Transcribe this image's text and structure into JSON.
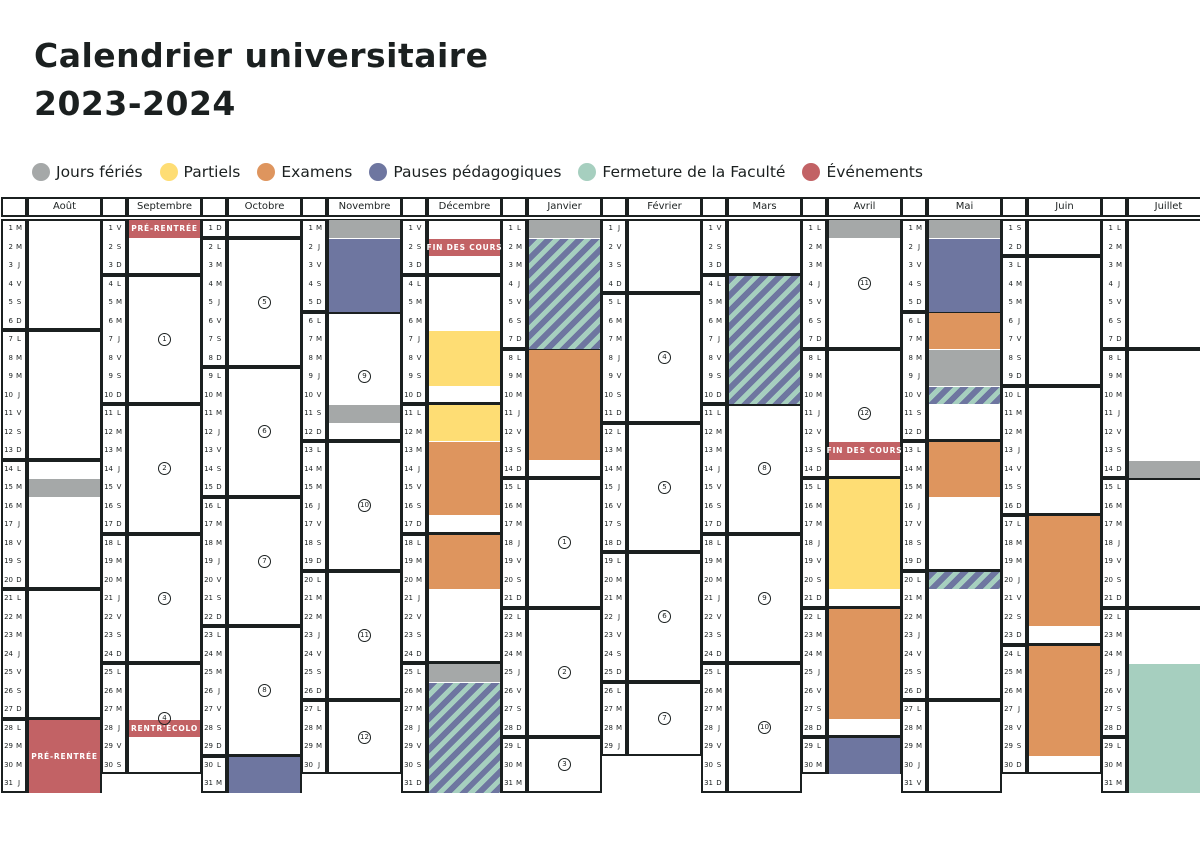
{
  "title": {
    "line1": "Calendrier universitaire",
    "line2": "2023-2024"
  },
  "legend": [
    {
      "key": "ferie",
      "label": "Jours fériés",
      "color": "#a5a8a8"
    },
    {
      "key": "partiels",
      "label": "Partiels",
      "color": "#fedd74"
    },
    {
      "key": "examens",
      "label": "Examens",
      "color": "#de955e"
    },
    {
      "key": "pause",
      "label": "Pauses pédagogiques",
      "color": "#6e76a0"
    },
    {
      "key": "fermeture",
      "label": "Fermeture de la Faculté",
      "color": "#a6cfbf"
    },
    {
      "key": "evenement",
      "label": "Événements",
      "color": "#c26265"
    }
  ],
  "weekday_letters": [
    "D",
    "L",
    "M",
    "M",
    "J",
    "V",
    "S"
  ],
  "months": [
    {
      "name": "Août",
      "year": 2023,
      "month": 8,
      "weeks": [],
      "events": [
        {
          "start": 15,
          "end": 15,
          "type": "ferie"
        },
        {
          "start": 28,
          "end": 31,
          "type": "evenement",
          "label": "PRÉ-RENTRÉE"
        }
      ]
    },
    {
      "name": "Septembre",
      "year": 2023,
      "month": 9,
      "weeks": [
        {
          "start": 4,
          "label": "1"
        },
        {
          "start": 11,
          "label": "2"
        },
        {
          "start": 18,
          "label": "3"
        },
        {
          "start": 25,
          "label": "4"
        }
      ],
      "events": [
        {
          "start": 1,
          "end": 1,
          "type": "evenement",
          "label": "PRÉ-RENTRÉE"
        },
        {
          "start": 28,
          "end": 28,
          "type": "evenement",
          "label": "RENTR'ÉCOLO"
        }
      ]
    },
    {
      "name": "Octobre",
      "year": 2023,
      "month": 10,
      "weeks": [
        {
          "start": 2,
          "label": "5"
        },
        {
          "start": 9,
          "label": "6"
        },
        {
          "start": 16,
          "label": "7"
        },
        {
          "start": 23,
          "label": "8"
        }
      ],
      "events": [
        {
          "start": 30,
          "end": 31,
          "type": "pause"
        }
      ]
    },
    {
      "name": "Novembre",
      "year": 2023,
      "month": 11,
      "weeks": [
        {
          "start": 6,
          "label": "9"
        },
        {
          "start": 13,
          "label": "10"
        },
        {
          "start": 20,
          "label": "11"
        },
        {
          "start": 27,
          "label": "12"
        }
      ],
      "events": [
        {
          "start": 1,
          "end": 1,
          "type": "ferie"
        },
        {
          "start": 2,
          "end": 5,
          "type": "pause"
        },
        {
          "start": 11,
          "end": 11,
          "type": "ferie"
        }
      ]
    },
    {
      "name": "Décembre",
      "year": 2023,
      "month": 12,
      "weeks": [],
      "events": [
        {
          "start": 2,
          "end": 2,
          "type": "evenement",
          "label": "FIN DES COURS"
        },
        {
          "start": 7,
          "end": 9,
          "type": "partiels"
        },
        {
          "start": 11,
          "end": 12,
          "type": "partiels"
        },
        {
          "start": 13,
          "end": 16,
          "type": "examens"
        },
        {
          "start": 18,
          "end": 20,
          "type": "examens"
        },
        {
          "start": 25,
          "end": 25,
          "type": "ferie"
        },
        {
          "start": 26,
          "end": 31,
          "type": "hatch"
        }
      ]
    },
    {
      "name": "Janvier",
      "year": 2024,
      "month": 1,
      "weeks": [
        {
          "start": 15,
          "label": "1"
        },
        {
          "start": 22,
          "label": "2"
        },
        {
          "start": 29,
          "label": "3"
        }
      ],
      "events": [
        {
          "start": 1,
          "end": 1,
          "type": "ferie"
        },
        {
          "start": 2,
          "end": 7,
          "type": "hatch"
        },
        {
          "start": 8,
          "end": 13,
          "type": "examens"
        }
      ]
    },
    {
      "name": "Février",
      "year": 2024,
      "month": 2,
      "weeks": [
        {
          "start": 5,
          "label": "4"
        },
        {
          "start": 12,
          "label": "5"
        },
        {
          "start": 19,
          "label": "6"
        },
        {
          "start": 26,
          "label": "7"
        }
      ],
      "events": []
    },
    {
      "name": "Mars",
      "year": 2024,
      "month": 3,
      "weeks": [
        {
          "start": 11,
          "label": "8"
        },
        {
          "start": 18,
          "label": "9"
        },
        {
          "start": 25,
          "label": "10"
        }
      ],
      "events": [
        {
          "start": 4,
          "end": 10,
          "type": "hatch"
        }
      ]
    },
    {
      "name": "Avril",
      "year": 2024,
      "month": 4,
      "weeks": [
        {
          "start": 1,
          "label": "11"
        },
        {
          "start": 8,
          "label": "12"
        }
      ],
      "events": [
        {
          "start": 1,
          "end": 1,
          "type": "ferie"
        },
        {
          "start": 13,
          "end": 13,
          "type": "evenement",
          "label": "FIN DES COURS"
        },
        {
          "start": 15,
          "end": 20,
          "type": "partiels"
        },
        {
          "start": 22,
          "end": 27,
          "type": "examens"
        },
        {
          "start": 29,
          "end": 30,
          "type": "pause"
        }
      ]
    },
    {
      "name": "Mai",
      "year": 2024,
      "month": 5,
      "weeks": [],
      "events": [
        {
          "start": 1,
          "end": 1,
          "type": "ferie"
        },
        {
          "start": 2,
          "end": 5,
          "type": "pause"
        },
        {
          "start": 6,
          "end": 7,
          "type": "examens"
        },
        {
          "start": 8,
          "end": 9,
          "type": "ferie"
        },
        {
          "start": 10,
          "end": 10,
          "type": "hatch"
        },
        {
          "start": 13,
          "end": 15,
          "type": "examens"
        },
        {
          "start": 20,
          "end": 20,
          "type": "hatch"
        }
      ]
    },
    {
      "name": "Juin",
      "year": 2024,
      "month": 6,
      "weeks": [],
      "events": [
        {
          "start": 17,
          "end": 22,
          "type": "examens"
        },
        {
          "start": 24,
          "end": 29,
          "type": "examens"
        }
      ]
    },
    {
      "name": "Juillet",
      "year": 2024,
      "month": 7,
      "weeks": [],
      "events": [
        {
          "start": 14,
          "end": 14,
          "type": "ferie"
        },
        {
          "start": 25,
          "end": 31,
          "type": "fermeture"
        }
      ]
    }
  ]
}
